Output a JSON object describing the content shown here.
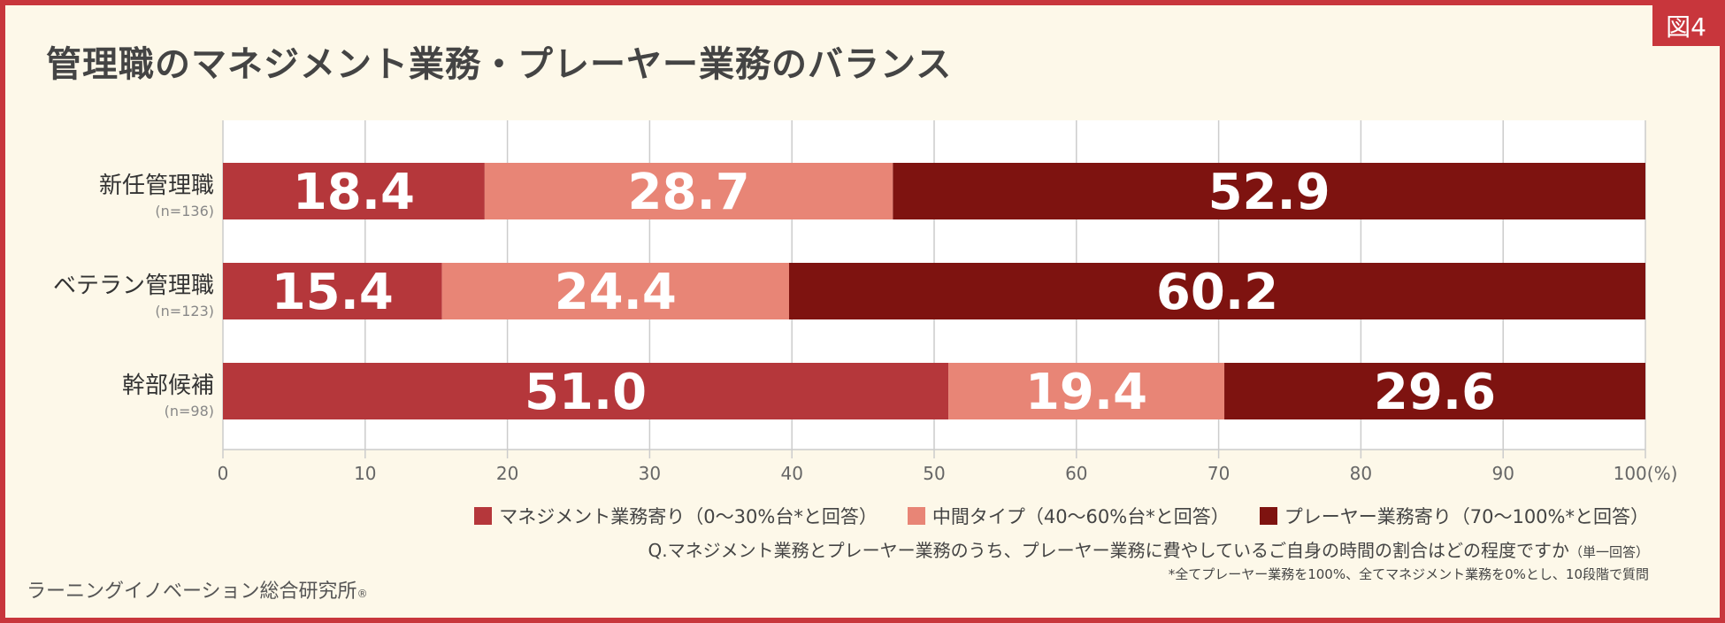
{
  "figure_label": "図4",
  "chart_data": {
    "type": "bar",
    "orientation": "horizontal",
    "stacked": true,
    "title": "管理職のマネジメント業務・プレーヤー業務のバランス",
    "categories": [
      "新任管理職",
      "ベテラン管理職",
      "幹部候補"
    ],
    "category_notes": [
      "(n=136)",
      "(n=123)",
      "(n=98)"
    ],
    "series": [
      {
        "name": "マネジメント業務寄り（0～30%台*と回答）",
        "color": "#b5373b",
        "values": [
          18.4,
          15.4,
          51.0
        ]
      },
      {
        "name": "中間タイプ（40～60%台*と回答）",
        "color": "#e88576",
        "values": [
          28.7,
          24.4,
          19.4
        ]
      },
      {
        "name": "プレーヤー業務寄り（70～100%*と回答）",
        "color": "#7e1310",
        "values": [
          52.9,
          60.2,
          29.6
        ]
      }
    ],
    "value_labels": [
      [
        "18.4",
        "28.7",
        "52.9"
      ],
      [
        "15.4",
        "24.4",
        "60.2"
      ],
      [
        "51.0",
        "19.4",
        "29.6"
      ]
    ],
    "x_ticks": [
      "0",
      "10",
      "20",
      "30",
      "40",
      "50",
      "60",
      "70",
      "80",
      "90",
      "100(%)"
    ],
    "xlim": [
      0,
      100
    ],
    "grid": true,
    "legend_position": "bottom-right"
  },
  "question": "Q.マネジメント業務とプレーヤー業務のうち、プレーヤー業務に費やしているご自身の時間の割合はどの程度ですか",
  "question_note": "（単一回答）",
  "footnote": "*全てプレーヤー業務を100%、全てマネジメント業務を0%とし、10段階で質問",
  "organization": "ラーニングイノベーション総合研究所",
  "organization_mark": "®"
}
